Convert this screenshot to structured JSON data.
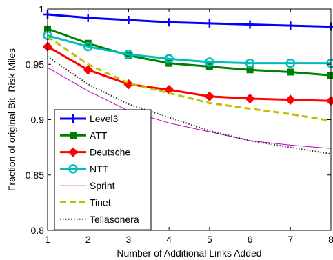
{
  "chart_data": {
    "type": "line",
    "title": "",
    "xlabel": "Number of Additional Links Added",
    "ylabel": "Fraction of original Bit−Risk Miles",
    "xlim": [
      1,
      8
    ],
    "ylim": [
      0.8,
      1
    ],
    "x": [
      1,
      2,
      3,
      4,
      5,
      6,
      7,
      8
    ],
    "xticks": [
      "1",
      "2",
      "3",
      "4",
      "5",
      "6",
      "7",
      "8"
    ],
    "yticks": [
      {
        "value": 0.8,
        "label": "0.8"
      },
      {
        "value": 0.85,
        "label": "0.85"
      },
      {
        "value": 0.9,
        "label": "0.9"
      },
      {
        "value": 0.95,
        "label": "0.95"
      },
      {
        "value": 1.0,
        "label": "1"
      }
    ],
    "grid": false,
    "legend_position": "bottom-left",
    "series": [
      {
        "name": "Level3",
        "values": [
          0.995,
          0.992,
          0.99,
          0.988,
          0.987,
          0.986,
          0.985,
          0.984
        ],
        "color": "#0000ff",
        "marker": "plus",
        "style": "solid",
        "width": 3
      },
      {
        "name": "ATT",
        "values": [
          0.982,
          0.969,
          0.958,
          0.951,
          0.948,
          0.945,
          0.943,
          0.94
        ],
        "color": "#008000",
        "marker": "square",
        "style": "solid",
        "width": 3
      },
      {
        "name": "Deutsche",
        "values": [
          0.966,
          0.945,
          0.932,
          0.927,
          0.921,
          0.919,
          0.918,
          0.917
        ],
        "color": "#ff0000",
        "marker": "diamond",
        "style": "solid",
        "width": 3
      },
      {
        "name": "NTT",
        "values": [
          0.976,
          0.966,
          0.959,
          0.955,
          0.952,
          0.951,
          0.951,
          0.951
        ],
        "color": "#00bcbc",
        "marker": "circle",
        "style": "solid",
        "width": 3
      },
      {
        "name": "Sprint",
        "values": [
          0.947,
          0.926,
          0.908,
          0.897,
          0.889,
          0.881,
          0.877,
          0.874
        ],
        "color": "#bf00bf",
        "marker": "none",
        "style": "solid",
        "width": 1
      },
      {
        "name": "Tinet",
        "values": [
          0.975,
          0.95,
          0.933,
          0.924,
          0.915,
          0.91,
          0.905,
          0.899
        ],
        "color": "#bfbf00",
        "marker": "none",
        "style": "dashed",
        "width": 3
      },
      {
        "name": "Teliasonera",
        "values": [
          0.957,
          0.932,
          0.914,
          0.902,
          0.89,
          0.881,
          0.875,
          0.869
        ],
        "color": "#333333",
        "marker": "none",
        "style": "dotted",
        "width": 2
      }
    ]
  }
}
